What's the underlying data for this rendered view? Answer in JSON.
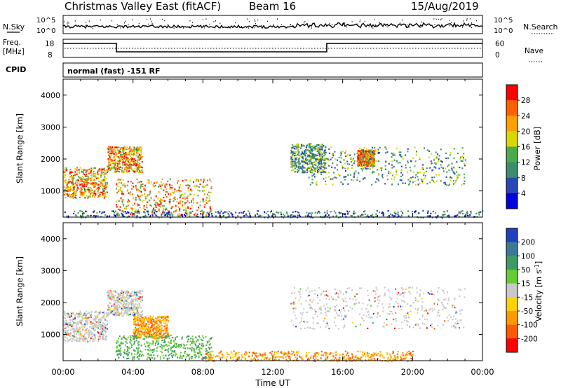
{
  "header": {
    "title": "Christmas Valley East (fitACF)",
    "beam": "Beam 16",
    "date": "15/Aug/2019"
  },
  "strip": {
    "nsky_label": "N.Sky",
    "nsky_ticks": [
      "10^5",
      "10^0"
    ],
    "nsky_right_ticks": [
      "10^5",
      "10^0"
    ],
    "nsearch_label": "N.Search",
    "freq_label_1": "Freq.",
    "freq_label_2": "[MHz]",
    "freq_ticks": [
      "18",
      "8"
    ],
    "nave_ticks": [
      "60",
      "0"
    ],
    "nave_label": "Nave",
    "cpid_label": "CPID",
    "cpid_value": "normal (fast) -151 RF"
  },
  "chart_data": [
    {
      "type": "heatmap",
      "panel": "power",
      "xlabel": "Time UT",
      "ylabel": "Slant Range [km]",
      "x_ticks": [
        "00:00",
        "04:00",
        "08:00",
        "12:00",
        "16:00",
        "20:00",
        "00:00"
      ],
      "x_range_hours": [
        0,
        24
      ],
      "y_ticks": [
        1000,
        2000,
        3000,
        4000
      ],
      "ylim": [
        180,
        4500
      ],
      "colorbar_label": "Power [dB]",
      "colorbar_ticks": [
        4,
        8,
        12,
        16,
        20,
        24,
        28
      ],
      "colorbar_colors": [
        "#0000e0",
        "#2848b8",
        "#3c8c70",
        "#4caa4c",
        "#d8d800",
        "#ffa000",
        "#ff6000",
        "#ff0000"
      ],
      "echo_regions": [
        {
          "t": [
            0.0,
            2.5
          ],
          "range": [
            800,
            1750
          ],
          "level": "high"
        },
        {
          "t": [
            2.5,
            4.5
          ],
          "range": [
            1600,
            2400
          ],
          "level": "high"
        },
        {
          "t": [
            3.0,
            8.5
          ],
          "range": [
            250,
            1400
          ],
          "level": "high"
        },
        {
          "t": [
            13.0,
            15.0
          ],
          "range": [
            1600,
            2500
          ],
          "level": "medium"
        },
        {
          "t": [
            16.8,
            17.8
          ],
          "range": [
            1800,
            2300
          ],
          "level": "high"
        },
        {
          "t": [
            14.0,
            23.0
          ],
          "range": [
            1200,
            2400
          ],
          "level": "medium"
        },
        {
          "t": [
            0.0,
            24.0
          ],
          "range": [
            180,
            400
          ],
          "level": "low"
        }
      ]
    },
    {
      "type": "heatmap",
      "panel": "velocity",
      "xlabel": "Time UT",
      "ylabel": "Slant Range [km]",
      "x_ticks": [
        "00:00",
        "04:00",
        "08:00",
        "12:00",
        "16:00",
        "20:00",
        "00:00"
      ],
      "x_range_hours": [
        0,
        24
      ],
      "y_ticks": [
        1000,
        2000,
        3000,
        4000
      ],
      "ylim": [
        180,
        4500
      ],
      "colorbar_label": "Velocity [m s-1]",
      "colorbar_ticks": [
        200,
        100,
        50,
        15,
        -15,
        -50,
        -100,
        -200
      ],
      "colorbar_colors": [
        "#2040c0",
        "#3a7a96",
        "#3c9a64",
        "#66cc33",
        "#c8c8c8",
        "#ffd200",
        "#ff9900",
        "#ff5a00",
        "#ff0000"
      ],
      "echo_regions": [
        {
          "t": [
            0.0,
            2.5
          ],
          "range": [
            800,
            1750
          ],
          "level": "near-zero"
        },
        {
          "t": [
            2.5,
            4.5
          ],
          "range": [
            1600,
            2400
          ],
          "level": "near-zero"
        },
        {
          "t": [
            4.0,
            6.0
          ],
          "range": [
            900,
            1600
          ],
          "level": "negative"
        },
        {
          "t": [
            3.0,
            8.5
          ],
          "range": [
            250,
            1000
          ],
          "level": "positive"
        },
        {
          "t": [
            13.0,
            23.0
          ],
          "range": [
            1200,
            2500
          ],
          "level": "near-zero"
        },
        {
          "t": [
            8.0,
            20.0
          ],
          "range": [
            180,
            500
          ],
          "level": "negative"
        }
      ]
    }
  ]
}
